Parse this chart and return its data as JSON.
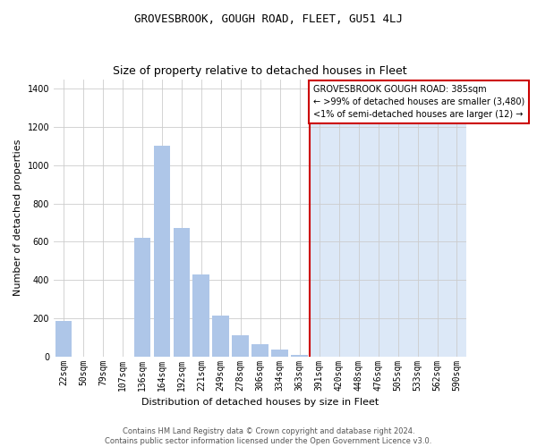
{
  "title": "GROVESBROOK, GOUGH ROAD, FLEET, GU51 4LJ",
  "subtitle": "Size of property relative to detached houses in Fleet",
  "xlabel": "Distribution of detached houses by size in Fleet",
  "ylabel": "Number of detached properties",
  "categories": [
    "22sqm",
    "50sqm",
    "79sqm",
    "107sqm",
    "136sqm",
    "164sqm",
    "192sqm",
    "221sqm",
    "249sqm",
    "278sqm",
    "306sqm",
    "334sqm",
    "363sqm",
    "391sqm",
    "420sqm",
    "448sqm",
    "476sqm",
    "505sqm",
    "533sqm",
    "562sqm",
    "590sqm"
  ],
  "values": [
    185,
    0,
    0,
    0,
    620,
    1100,
    670,
    430,
    215,
    110,
    65,
    35,
    10,
    0,
    0,
    0,
    0,
    0,
    0,
    0,
    0
  ],
  "highlight_index": 13,
  "bar_color_normal": "#aec6e8",
  "bar_color_highlight": "#dce8f7",
  "highlight_line_color": "#cc0000",
  "annotation_box_color": "#cc0000",
  "annotation_text": "GROVESBROOK GOUGH ROAD: 385sqm\n← >99% of detached houses are smaller (3,480)\n<1% of semi-detached houses are larger (12) →",
  "ylim": [
    0,
    1450
  ],
  "yticks": [
    0,
    200,
    400,
    600,
    800,
    1000,
    1200,
    1400
  ],
  "footer_text": "Contains HM Land Registry data © Crown copyright and database right 2024.\nContains public sector information licensed under the Open Government Licence v3.0.",
  "background_color": "#ffffff",
  "plot_bg_color_left": "#ffffff",
  "plot_bg_color_right": "#dce8f7",
  "grid_color": "#cccccc",
  "title_fontsize": 9,
  "subtitle_fontsize": 9,
  "ylabel_fontsize": 8,
  "xlabel_fontsize": 8,
  "tick_fontsize": 7,
  "annotation_fontsize": 7,
  "footer_fontsize": 6
}
